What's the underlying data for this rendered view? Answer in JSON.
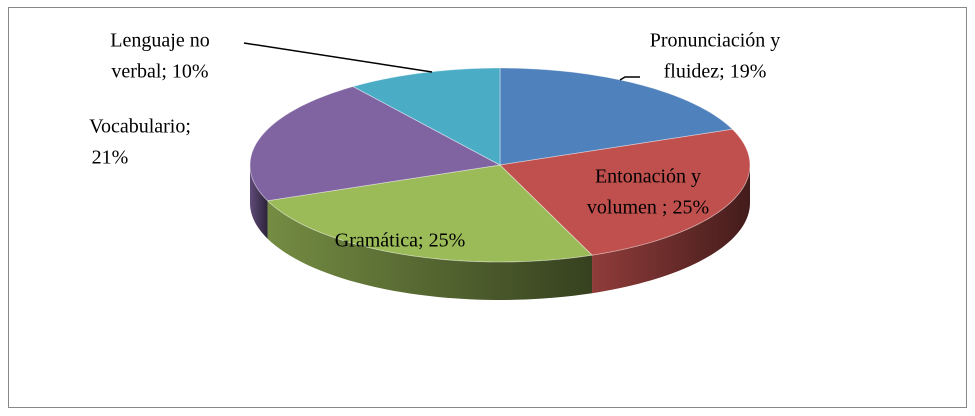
{
  "chart_data": {
    "type": "pie3d",
    "categories": [
      "Pronunciación y fluidez",
      "Entonación y volumen ",
      "Gramática",
      "Vocabulario",
      "Lenguaje no verbal"
    ],
    "values": [
      19,
      25,
      25,
      21,
      10
    ],
    "value_labels": [
      [
        "Pronunciación y",
        "fluidez; 19%"
      ],
      [
        "Entonación y",
        "volumen ; 25%"
      ],
      [
        "Gramática; 25%"
      ],
      [
        "Vocabulario;",
        "21%"
      ],
      [
        "Lenguaje no",
        "verbal; 10%"
      ]
    ],
    "colors": [
      "#4f81bd",
      "#c0504d",
      "#9bbb59",
      "#8064a2",
      "#4bacc6"
    ]
  }
}
